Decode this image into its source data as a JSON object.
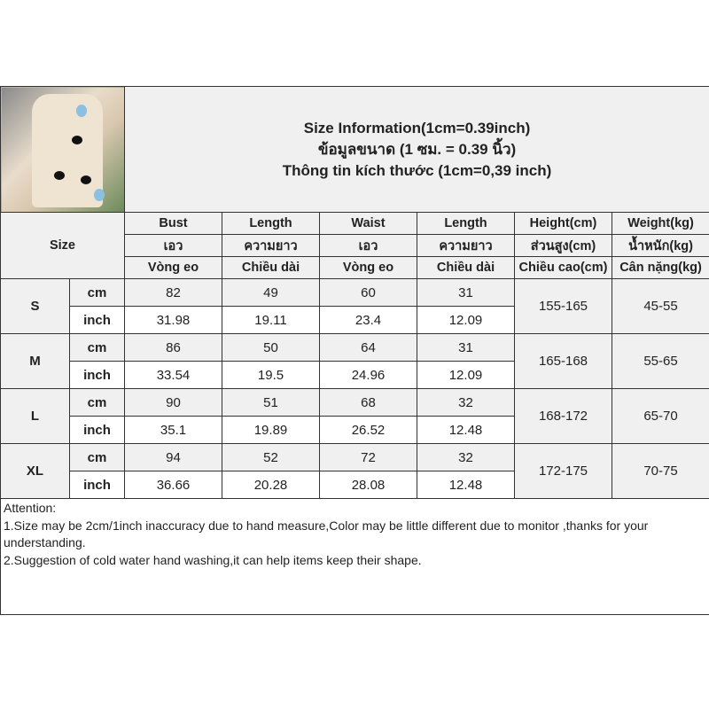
{
  "title": {
    "line1": "Size Information(1cm=0.39inch)",
    "line2": "ข้อมูลขนาด (1 ซม. = 0.39 นิ้ว)",
    "line3": "Thông tin kích thước (1cm=0,39 inch)"
  },
  "size_label": "Size",
  "headers": [
    [
      "Bust",
      "Length",
      "Waist",
      "Length",
      "Height(cm)",
      "Weight(kg)"
    ],
    [
      "เอว",
      "ความยาว",
      "เอว",
      "ความยาว",
      "ส่วนสูง(cm)",
      "น้ำหนัก(kg)"
    ],
    [
      "Vòng eo",
      "Chiều dài",
      "Vòng eo",
      "Chiều dài",
      "Chiều cao(cm)",
      "Cân nặng(kg)"
    ]
  ],
  "units": {
    "cm": "cm",
    "inch": "inch"
  },
  "rows": [
    {
      "size": "S",
      "cm": [
        "82",
        "49",
        "60",
        "31"
      ],
      "inch": [
        "31.98",
        "19.11",
        "23.4",
        "12.09"
      ],
      "height": "155-165",
      "weight": "45-55"
    },
    {
      "size": "M",
      "cm": [
        "86",
        "50",
        "64",
        "31"
      ],
      "inch": [
        "33.54",
        "19.5",
        "24.96",
        "12.09"
      ],
      "height": "165-168",
      "weight": "55-65"
    },
    {
      "size": "L",
      "cm": [
        "90",
        "51",
        "68",
        "32"
      ],
      "inch": [
        "35.1",
        "19.89",
        "26.52",
        "12.48"
      ],
      "height": "168-172",
      "weight": "65-70"
    },
    {
      "size": "XL",
      "cm": [
        "94",
        "52",
        "72",
        "32"
      ],
      "inch": [
        "36.66",
        "20.28",
        "28.08",
        "12.48"
      ],
      "height": "172-175",
      "weight": "70-75"
    }
  ],
  "attention": [
    "Attention:",
    "1.Size may be 2cm/1inch inaccuracy due to hand measure,Color may be little different due to monitor ,thanks for your understanding.",
    "2.Suggestion of cold water hand washing,it can help items keep their shape."
  ]
}
